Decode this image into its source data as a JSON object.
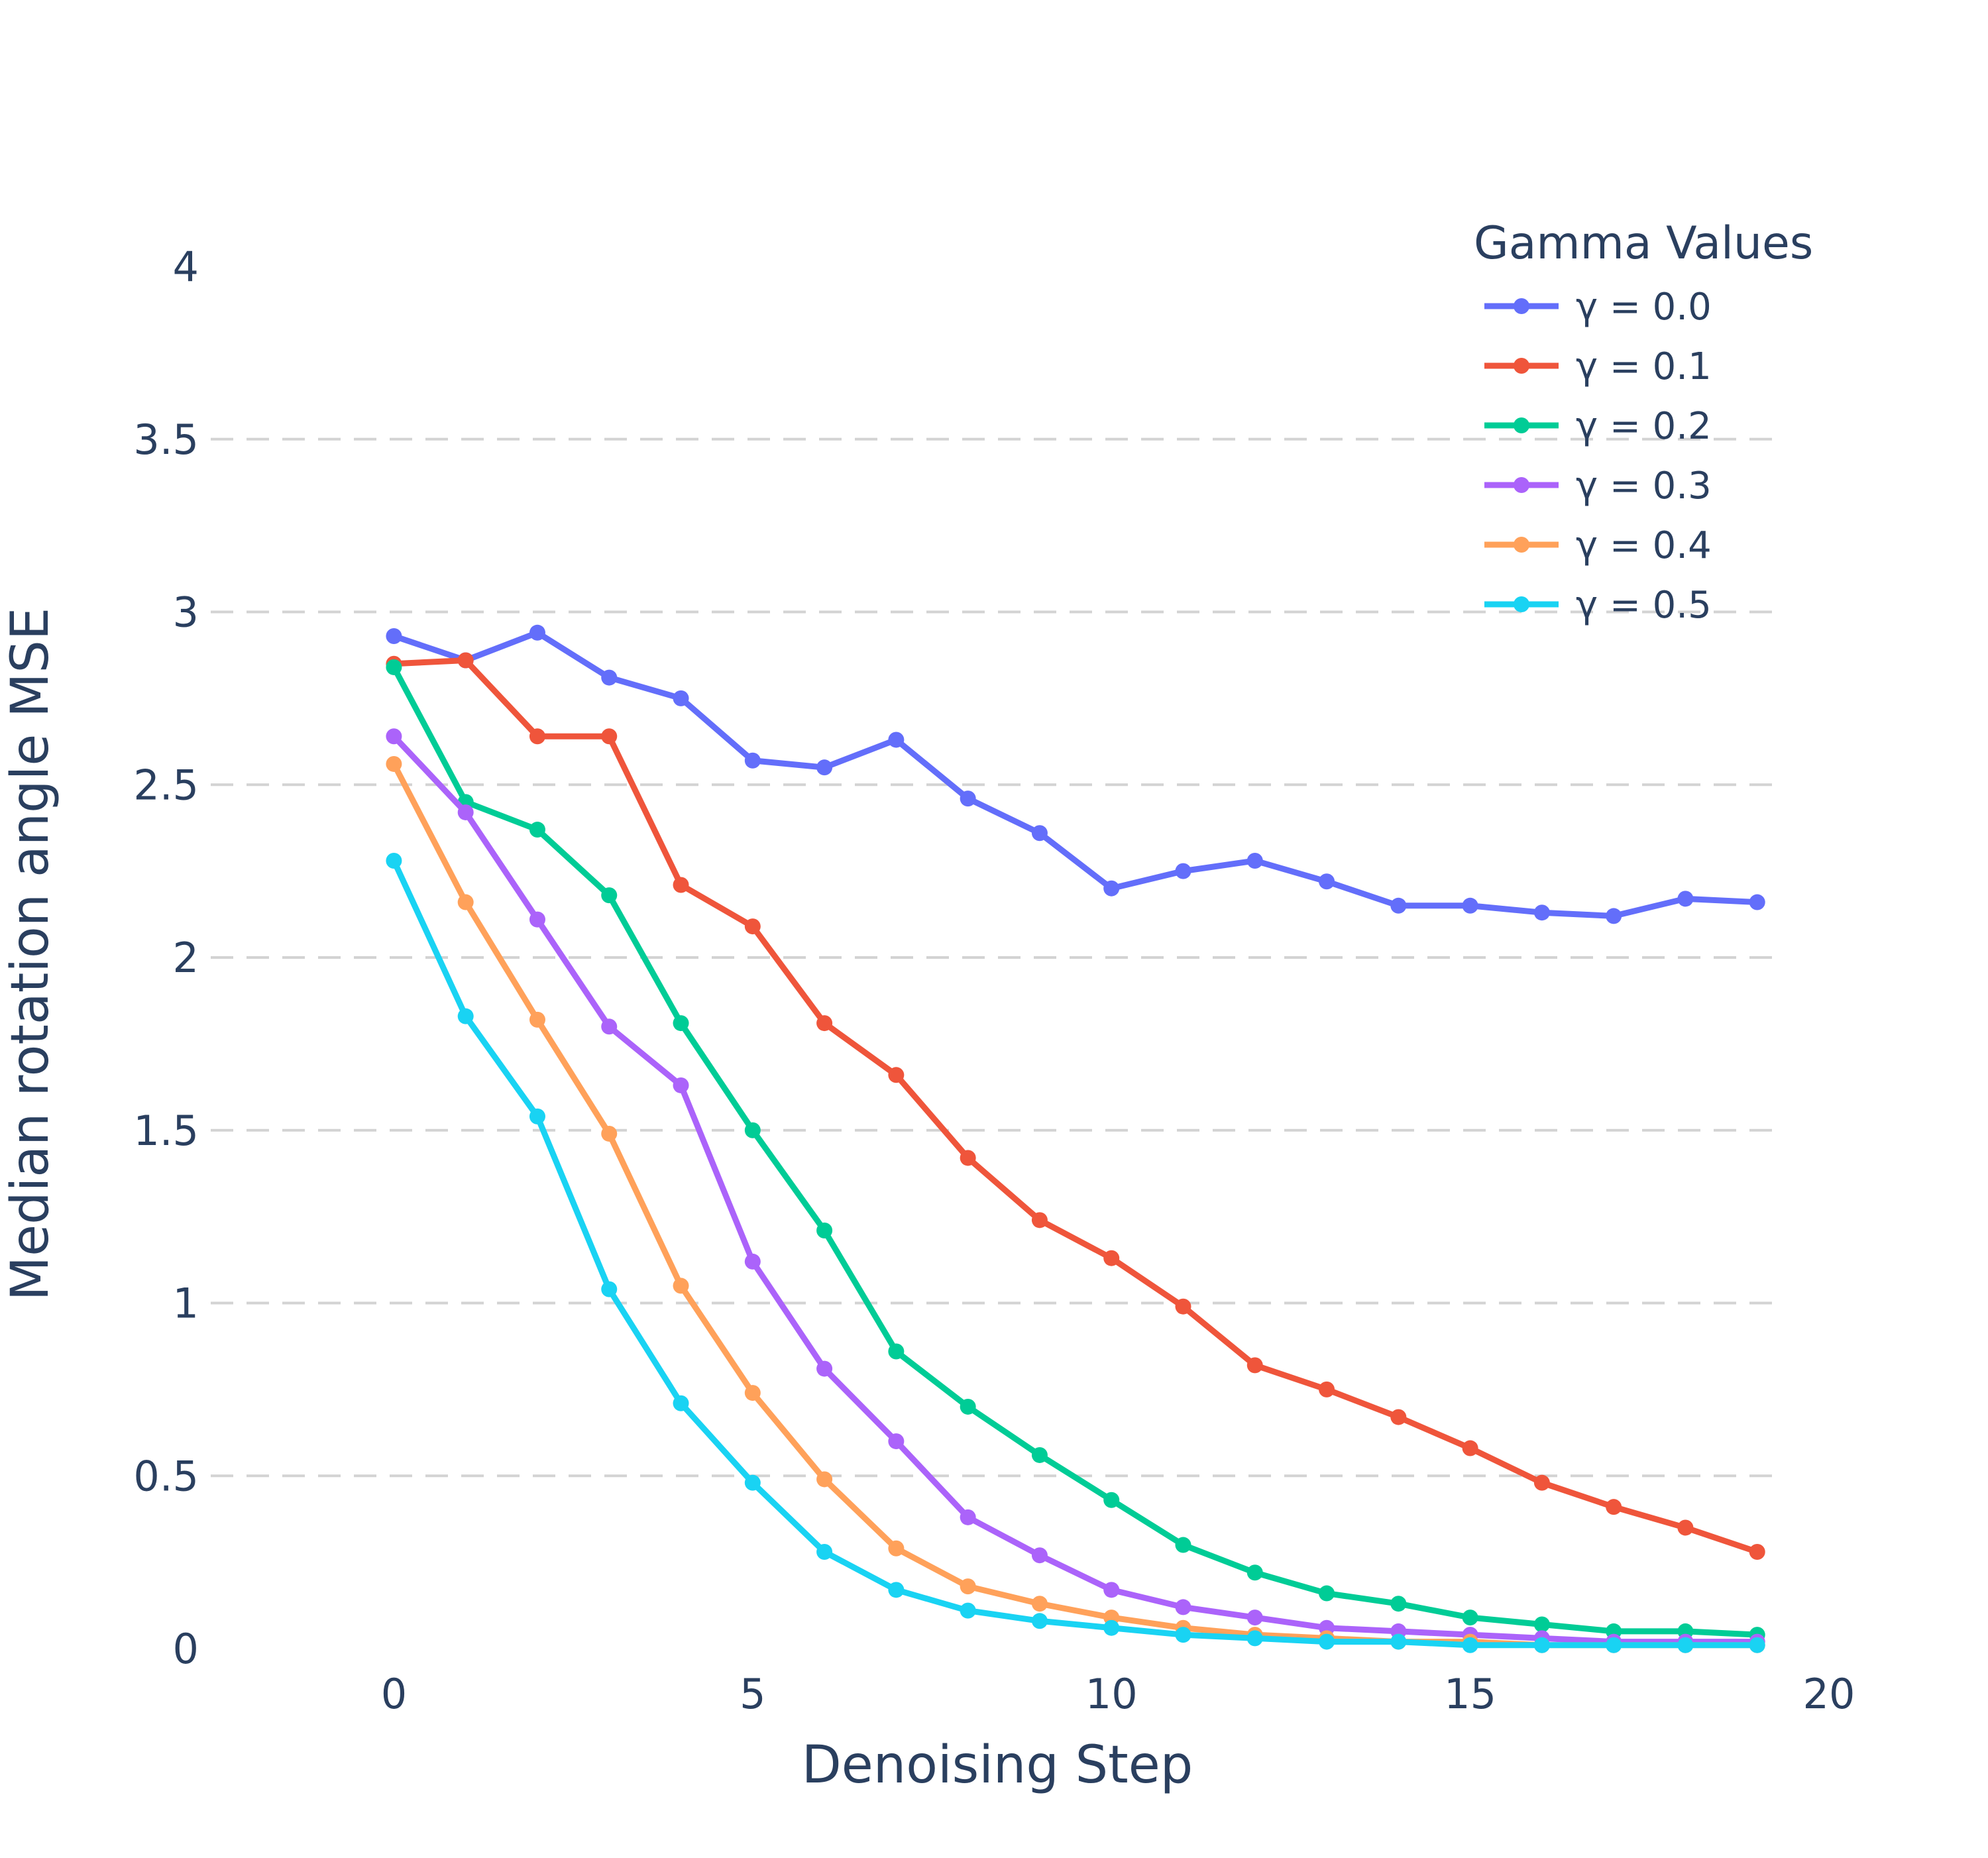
{
  "chart_data": {
    "type": "line",
    "title": "",
    "xlabel": "Denoising Step",
    "ylabel": "Median rotation angle MSE",
    "xlim": [
      -1.5,
      20
    ],
    "ylim": [
      0,
      4
    ],
    "x_ticks": [
      0,
      5,
      10,
      15,
      20
    ],
    "y_ticks": [
      0,
      0.5,
      1,
      1.5,
      2,
      2.5,
      3,
      3.5,
      4
    ],
    "x_tick_labels": [
      "0",
      "5",
      "10",
      "15",
      "20"
    ],
    "y_tick_labels": [
      "0",
      "0.5",
      "1",
      "1.5",
      "2",
      "2.5",
      "3",
      "3.5",
      "4"
    ],
    "grid": "horizontal dashed",
    "legend": {
      "title": "Gamma Values",
      "position": "top-right"
    },
    "x": [
      0,
      1,
      2,
      3,
      4,
      5,
      6,
      7,
      8,
      9,
      10,
      11,
      12,
      13,
      14,
      15,
      16,
      17,
      18,
      19
    ],
    "series": [
      {
        "name": "γ = 0.0",
        "color": "#636efa",
        "values": [
          2.93,
          2.86,
          2.94,
          2.81,
          2.75,
          2.57,
          2.55,
          2.63,
          2.46,
          2.36,
          2.2,
          2.25,
          2.28,
          2.22,
          2.15,
          2.15,
          2.13,
          2.12,
          2.17,
          2.16
        ]
      },
      {
        "name": "γ = 0.1",
        "color": "#ef553b",
        "values": [
          2.85,
          2.86,
          2.64,
          2.64,
          2.21,
          2.09,
          1.81,
          1.66,
          1.42,
          1.24,
          1.13,
          0.99,
          0.82,
          0.75,
          0.67,
          0.58,
          0.48,
          0.41,
          0.35,
          0.28
        ]
      },
      {
        "name": "γ = 0.2",
        "color": "#00cc96",
        "values": [
          2.84,
          2.45,
          2.37,
          2.18,
          1.81,
          1.5,
          1.21,
          0.86,
          0.7,
          0.56,
          0.43,
          0.3,
          0.22,
          0.16,
          0.13,
          0.09,
          0.07,
          0.05,
          0.05,
          0.04
        ]
      },
      {
        "name": "γ = 0.3",
        "color": "#ab63fa",
        "values": [
          2.64,
          2.42,
          2.11,
          1.8,
          1.63,
          1.12,
          0.81,
          0.6,
          0.38,
          0.27,
          0.17,
          0.12,
          0.09,
          0.06,
          0.05,
          0.04,
          0.03,
          0.02,
          0.02,
          0.02
        ]
      },
      {
        "name": "γ = 0.4",
        "color": "#ffa15a",
        "values": [
          2.56,
          2.16,
          1.82,
          1.49,
          1.05,
          0.74,
          0.49,
          0.29,
          0.18,
          0.13,
          0.09,
          0.06,
          0.04,
          0.03,
          0.02,
          0.02,
          0.01,
          0.01,
          0.01,
          0.01
        ]
      },
      {
        "name": "γ = 0.5",
        "color": "#19d3f3",
        "values": [
          2.28,
          1.83,
          1.54,
          1.04,
          0.71,
          0.48,
          0.28,
          0.17,
          0.11,
          0.08,
          0.06,
          0.04,
          0.03,
          0.02,
          0.02,
          0.01,
          0.01,
          0.01,
          0.01,
          0.01
        ]
      }
    ]
  }
}
